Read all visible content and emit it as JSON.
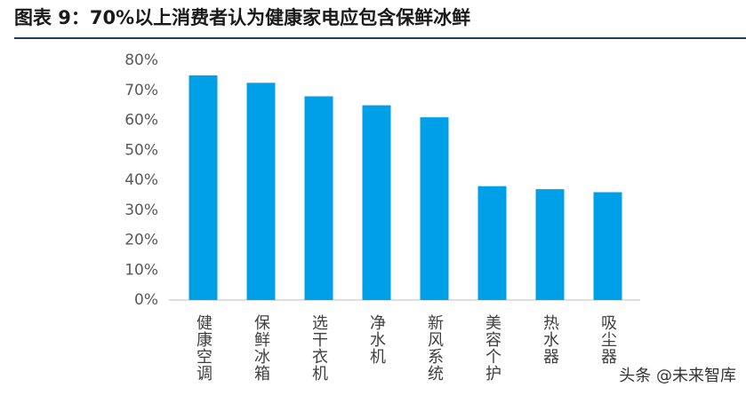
{
  "chart_data": {
    "type": "bar",
    "title": "图表 9：70%以上消费者认为健康家电应包含保鲜冰鲜",
    "categories": [
      "健康空调",
      "保鲜冰箱",
      "选干衣机",
      "净水机",
      "新风系统",
      "美容个护",
      "热水器",
      "吸尘器"
    ],
    "values": [
      75,
      72.5,
      68,
      65,
      61,
      38,
      37,
      36
    ],
    "color": "#00a0e9",
    "ylim": [
      0,
      80
    ],
    "yticks": [
      {
        "value": 0,
        "label": "0%"
      },
      {
        "value": 10,
        "label": "10%"
      },
      {
        "value": 20,
        "label": "20%"
      },
      {
        "value": 30,
        "label": "30%"
      },
      {
        "value": 40,
        "label": "40%"
      },
      {
        "value": 50,
        "label": "50%"
      },
      {
        "value": 60,
        "label": "60%"
      },
      {
        "value": 70,
        "label": "70%"
      },
      {
        "value": 80,
        "label": "80%"
      }
    ],
    "grid": false,
    "watermark": "头条 @未来智库"
  }
}
